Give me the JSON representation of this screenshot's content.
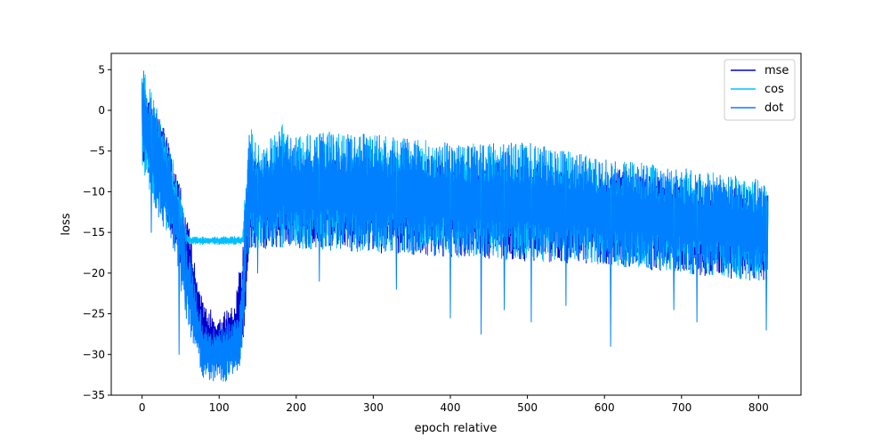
{
  "chart_data": {
    "type": "line",
    "title": "",
    "xlabel": "epoch relative",
    "ylabel": "loss",
    "xlim": [
      -40,
      855
    ],
    "ylim": [
      -35,
      7
    ],
    "xticks": [
      0,
      100,
      200,
      300,
      400,
      500,
      600,
      700,
      800
    ],
    "yticks": [
      5,
      0,
      -5,
      -10,
      -15,
      -20,
      -25,
      -30,
      -35
    ],
    "grid": false,
    "legend_position": "top-right",
    "series": [
      {
        "name": "mse",
        "color": "#0000cd",
        "upper_envelope": [
          [
            0,
            3
          ],
          [
            5,
            2.5
          ],
          [
            20,
            0
          ],
          [
            40,
            -5
          ],
          [
            60,
            -14
          ],
          [
            80,
            -24
          ],
          [
            100,
            -25
          ],
          [
            120,
            -24
          ],
          [
            130,
            -17
          ],
          [
            140,
            -6
          ],
          [
            200,
            -6
          ],
          [
            400,
            -6
          ],
          [
            600,
            -7
          ],
          [
            800,
            -10
          ],
          [
            812,
            -10
          ]
        ],
        "lower_envelope": [
          [
            0,
            -6
          ],
          [
            20,
            -10
          ],
          [
            40,
            -16
          ],
          [
            60,
            -22
          ],
          [
            80,
            -31
          ],
          [
            100,
            -32
          ],
          [
            130,
            -30
          ],
          [
            140,
            -17
          ],
          [
            200,
            -17
          ],
          [
            400,
            -18
          ],
          [
            600,
            -19
          ],
          [
            800,
            -21
          ],
          [
            812,
            -21
          ]
        ]
      },
      {
        "name": "cos",
        "color": "#00bfff",
        "upper_envelope": [
          [
            0,
            4.5
          ],
          [
            3,
            5
          ],
          [
            10,
            3
          ],
          [
            20,
            0
          ],
          [
            30,
            -2.5
          ],
          [
            40,
            -6
          ],
          [
            50,
            -10
          ],
          [
            57,
            -14.5
          ],
          [
            60,
            -15.5
          ],
          [
            130,
            -15.5
          ],
          [
            135,
            -8
          ],
          [
            140,
            -0.5
          ],
          [
            145,
            -3
          ],
          [
            155,
            -5
          ],
          [
            170,
            -3
          ],
          [
            180,
            -1.5
          ],
          [
            200,
            -3
          ],
          [
            230,
            -2.5
          ],
          [
            300,
            -3
          ],
          [
            400,
            -4
          ],
          [
            500,
            -4
          ],
          [
            600,
            -6
          ],
          [
            700,
            -7
          ],
          [
            800,
            -8.5
          ],
          [
            812,
            -9.5
          ]
        ],
        "lower_envelope": [
          [
            0,
            -7
          ],
          [
            10,
            -10
          ],
          [
            20,
            -13
          ],
          [
            40,
            -16
          ],
          [
            57,
            -16.5
          ],
          [
            60,
            -16.5
          ],
          [
            130,
            -16.5
          ],
          [
            135,
            -16
          ],
          [
            140,
            -17
          ],
          [
            200,
            -17
          ],
          [
            400,
            -18
          ],
          [
            600,
            -19
          ],
          [
            800,
            -21
          ],
          [
            812,
            -21
          ]
        ]
      },
      {
        "name": "dot",
        "color": "#0080ff",
        "upper_envelope": [
          [
            0,
            4.5
          ],
          [
            3,
            5
          ],
          [
            10,
            3
          ],
          [
            20,
            0
          ],
          [
            30,
            -2.5
          ],
          [
            40,
            -6
          ],
          [
            50,
            -10
          ],
          [
            60,
            -16
          ],
          [
            70,
            -22
          ],
          [
            80,
            -26
          ],
          [
            90,
            -27
          ],
          [
            100,
            -26.5
          ],
          [
            110,
            -26
          ],
          [
            125,
            -25
          ],
          [
            130,
            -17
          ],
          [
            135,
            -8
          ],
          [
            140,
            -0.5
          ],
          [
            145,
            -3
          ],
          [
            155,
            -5
          ],
          [
            170,
            -3
          ],
          [
            180,
            -1.5
          ],
          [
            200,
            -3
          ],
          [
            230,
            -2.5
          ],
          [
            300,
            -3
          ],
          [
            400,
            -4
          ],
          [
            500,
            -4
          ],
          [
            600,
            -6
          ],
          [
            700,
            -7
          ],
          [
            800,
            -8.5
          ],
          [
            812,
            -9.5
          ]
        ],
        "lower_envelope": [
          [
            0,
            -7
          ],
          [
            10,
            -10
          ],
          [
            20,
            -13
          ],
          [
            40,
            -17
          ],
          [
            50,
            -22
          ],
          [
            60,
            -27
          ],
          [
            70,
            -30
          ],
          [
            80,
            -33
          ],
          [
            100,
            -33.5
          ],
          [
            125,
            -33
          ],
          [
            130,
            -31
          ],
          [
            135,
            -20
          ],
          [
            140,
            -17
          ],
          [
            200,
            -17
          ],
          [
            400,
            -18
          ],
          [
            600,
            -19
          ],
          [
            800,
            -21
          ],
          [
            812,
            -21
          ]
        ],
        "spikes": [
          [
            12,
            -15
          ],
          [
            48,
            -30
          ],
          [
            56,
            -24.5
          ],
          [
            150,
            -20
          ],
          [
            230,
            -21
          ],
          [
            330,
            -22
          ],
          [
            400,
            -25.5
          ],
          [
            440,
            -27.5
          ],
          [
            470,
            -24.5
          ],
          [
            505,
            -26
          ],
          [
            550,
            -24
          ],
          [
            608,
            -29
          ],
          [
            690,
            -24.5
          ],
          [
            720,
            -26
          ],
          [
            810,
            -27
          ]
        ]
      }
    ]
  }
}
